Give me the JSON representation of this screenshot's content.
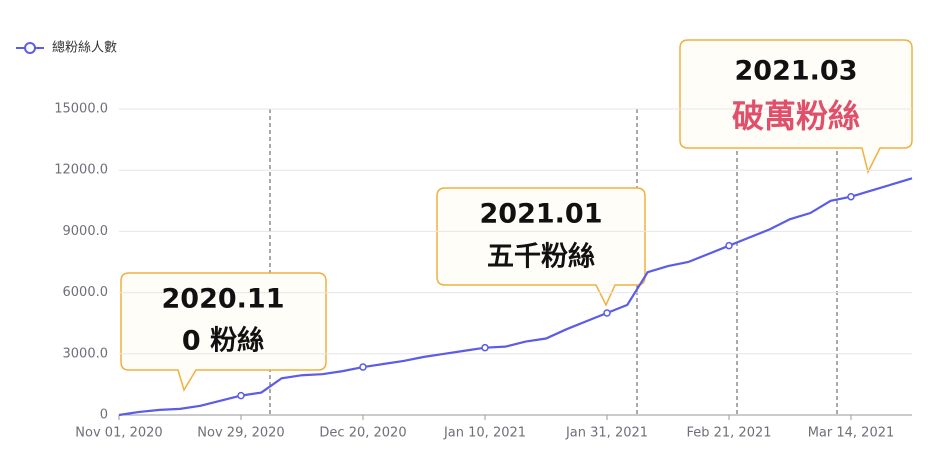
{
  "chart_data": {
    "type": "line",
    "categories": [
      "Nov 01, 2020",
      null,
      null,
      null,
      null,
      null,
      "Nov 29, 2020",
      null,
      null,
      null,
      null,
      null,
      "Dec 20, 2020",
      null,
      null,
      null,
      null,
      null,
      "Jan 10, 2021",
      null,
      null,
      null,
      null,
      null,
      "Jan 31, 2021",
      null,
      null,
      null,
      null,
      null,
      "Feb 21, 2021",
      null,
      null,
      null,
      null,
      null,
      "Mar 14, 2021",
      null,
      null,
      null
    ],
    "series": [
      {
        "name": "總粉絲人數",
        "color": "#5b5ce8",
        "values": [
          0,
          150,
          250,
          300,
          450,
          700,
          950,
          1100,
          1800,
          1950,
          2000,
          2150,
          2350,
          2500,
          2650,
          2850,
          3000,
          3150,
          3300,
          3350,
          3600,
          3750,
          4200,
          4600,
          5000,
          5400,
          7000,
          7300,
          7500,
          7900,
          8300,
          8700,
          9100,
          9600,
          9900,
          10500,
          10700,
          11000,
          11300,
          11600
        ]
      }
    ],
    "ylim": [
      0,
      15000
    ],
    "yticks": [
      0,
      {
        "value": 3000,
        "label": "3000.0"
      },
      {
        "value": 6000,
        "label": "6000.0"
      },
      {
        "value": 9000,
        "label": "9000.0"
      },
      {
        "value": 12000,
        "label": "12000.0"
      },
      {
        "value": 15000,
        "label": "15000.0"
      }
    ],
    "grid": true,
    "legend": "top-left",
    "annotations": [
      {
        "title": "2020.11",
        "text": "0 粉絲",
        "color": "#111111"
      },
      {
        "title": "2021.01",
        "text": "五千粉絲",
        "color": "#111111"
      },
      {
        "title": "2021.03",
        "text": "破萬粉絲",
        "color": "#e0506a"
      }
    ]
  }
}
